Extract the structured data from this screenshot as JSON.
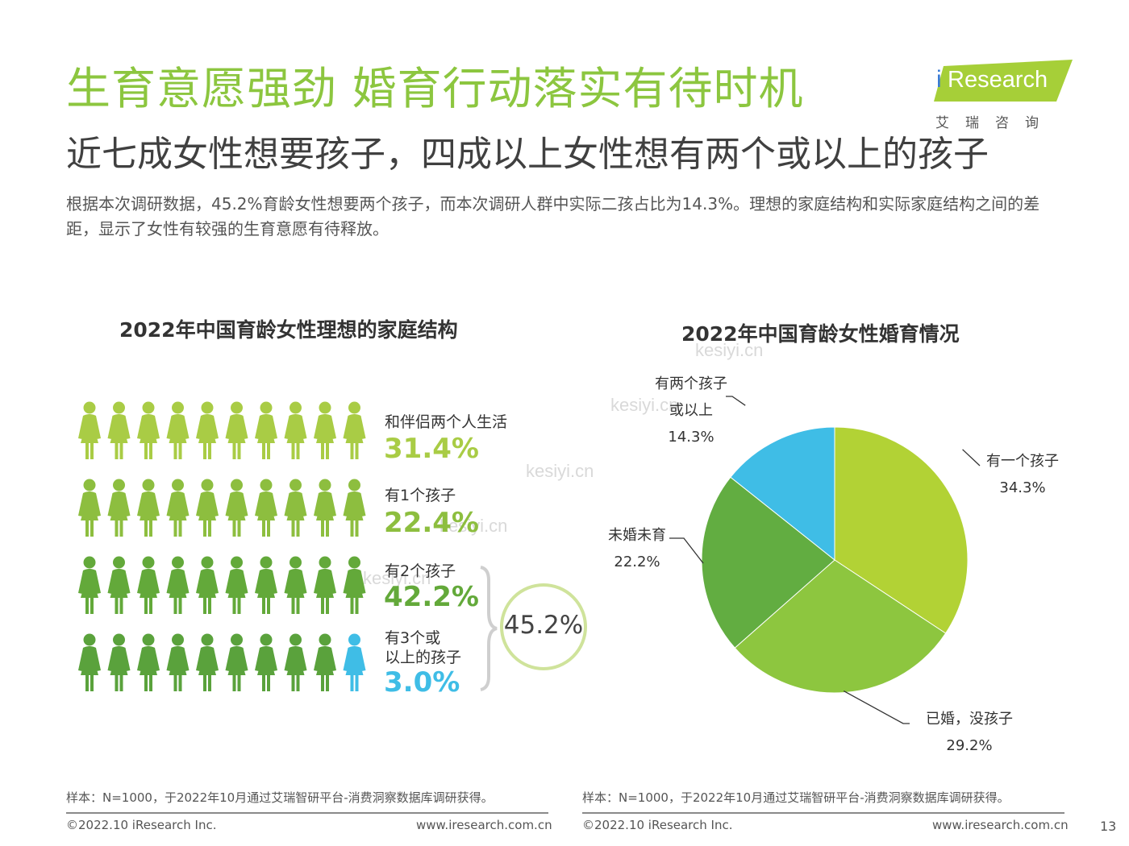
{
  "header": {
    "title": "生育意愿强劲 婚育行动落实有待时机",
    "subtitle": "近七成女性想要孩子，四成以上女性想有两个或以上的孩子",
    "description": "根据本次调研数据，45.2%育龄女性想要两个孩子，而本次调研人群中实际二孩占比为14.3%。理想的家庭结构和实际家庭结构之间的差距，显示了女性有较强的生育意愿有待释放。"
  },
  "logo": {
    "i": "i",
    "name": "Research",
    "sub": "艾瑞咨询"
  },
  "watermarks": [
    "kesiyi.cn",
    "kesiyi.cn",
    "kesiyi.cn",
    "kesiyi.cn",
    "kesiyi.cn"
  ],
  "colors": {
    "brand_green": "#8cc63f",
    "row1": "#a9cc45",
    "row2": "#8dbe3f",
    "row3": "#63a93a",
    "row4": "#5aa23c",
    "blue": "#3fbde6",
    "pie_one_child": "#b2d235",
    "pie_married_no_child": "#8dc63f",
    "pie_unmarried": "#62ad41",
    "pie_two_plus": "#3fbde6"
  },
  "chart_data": [
    {
      "type": "pictogram",
      "title": "2022年中国育龄女性理想的家庭结构",
      "categories": [
        "和伴侣两个人生活",
        "有1个孩子",
        "有2个孩子",
        "有3个或以上的孩子"
      ],
      "category_lines": [
        [
          "和伴侣两个人生活"
        ],
        [
          "有1个孩子"
        ],
        [
          "有2个孩子"
        ],
        [
          "有3个或",
          "以上的孩子"
        ]
      ],
      "values": [
        31.4,
        22.4,
        42.2,
        3.0
      ],
      "value_labels": [
        "31.4%",
        "22.4%",
        "42.2%",
        "3.0%"
      ],
      "icons_per_row": 10,
      "bracket_total_label": "45.2%"
    },
    {
      "type": "pie",
      "title": "2022年中国育龄女性婚育情况",
      "slices": [
        {
          "name": "有一个孩子",
          "name_lines": [
            "有一个孩子"
          ],
          "value": 34.3,
          "value_label": "34.3%"
        },
        {
          "name": "已婚，没孩子",
          "name_lines": [
            "已婚，没孩子"
          ],
          "value": 29.2,
          "value_label": "29.2%"
        },
        {
          "name": "未婚未育",
          "name_lines": [
            "未婚未育"
          ],
          "value": 22.2,
          "value_label": "22.2%"
        },
        {
          "name": "有两个孩子或以上",
          "name_lines": [
            "有两个孩子",
            "或以上"
          ],
          "value": 14.3,
          "value_label": "14.3%"
        }
      ]
    }
  ],
  "footer": {
    "left": {
      "note": "样本：N=1000，于2022年10月通过艾瑞智研平台-消费洞察数据库调研获得。",
      "copyright": "©2022.10 iResearch Inc.",
      "url": "www.iresearch.com.cn"
    },
    "right": {
      "note": "样本：N=1000，于2022年10月通过艾瑞智研平台-消费洞察数据库调研获得。",
      "copyright": "©2022.10 iResearch Inc.",
      "url": "www.iresearch.com.cn"
    },
    "page_number": "13"
  }
}
